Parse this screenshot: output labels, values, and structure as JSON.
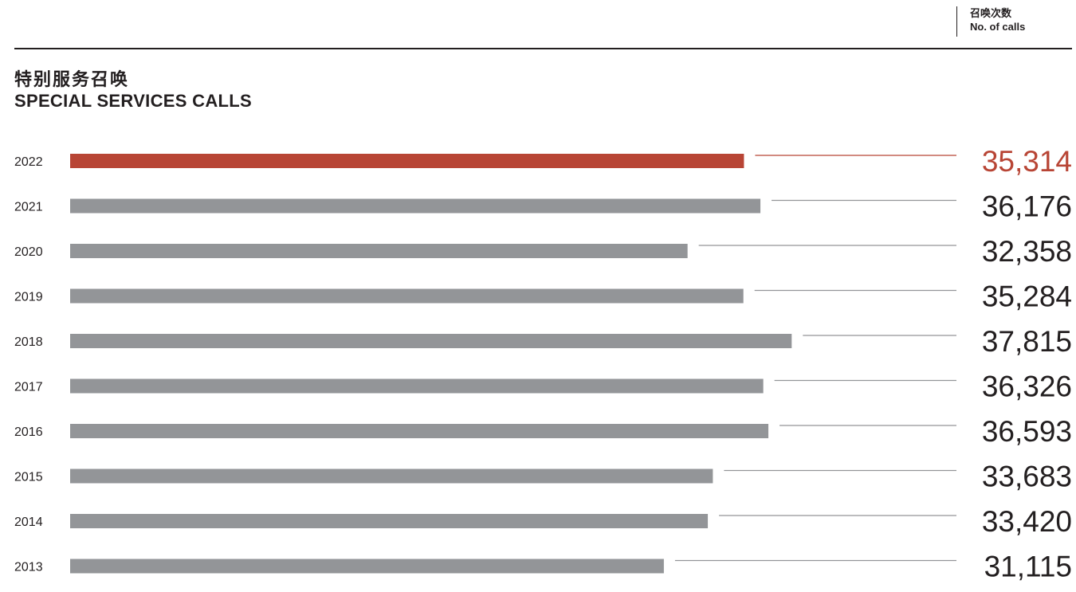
{
  "header": {
    "unit_zh": "召唤次数",
    "unit_en": "No. of calls",
    "title_zh": "特别服务召唤",
    "title_en": "SPECIAL SERVICES CALLS"
  },
  "colors": {
    "highlight": "#b84535",
    "bar": "#939598",
    "text": "#231f20"
  },
  "chart_data": {
    "type": "bar",
    "orientation": "horizontal",
    "title": "特别服务召唤 SPECIAL SERVICES CALLS",
    "unit": "召唤次数 No. of calls",
    "categories": [
      "2022",
      "2021",
      "2020",
      "2019",
      "2018",
      "2017",
      "2016",
      "2015",
      "2014",
      "2013"
    ],
    "values": [
      35314,
      36176,
      32358,
      35284,
      37815,
      36326,
      36593,
      33683,
      33420,
      31115
    ],
    "value_labels": [
      "35,314",
      "36,176",
      "32,358",
      "35,284",
      "37,815",
      "36,326",
      "36,593",
      "33,683",
      "33,420",
      "31,115"
    ],
    "highlight_index": 0,
    "grid": false,
    "legend": "none"
  }
}
